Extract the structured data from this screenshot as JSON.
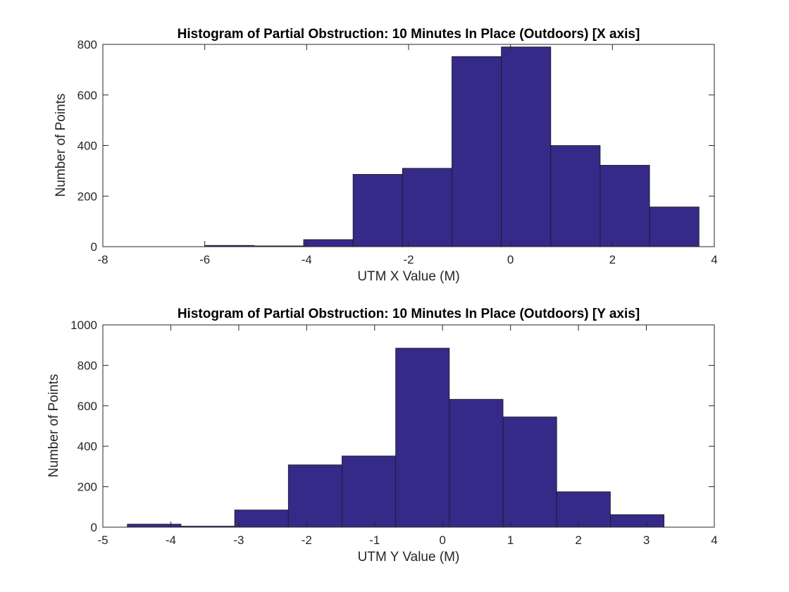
{
  "colors": {
    "bar": "#352A87"
  },
  "chart_data": [
    {
      "type": "bar",
      "title": "Histogram of Partial Obstruction: 10 Minutes In Place (Outdoors) [X axis]",
      "xlabel": "UTM X Value (M)",
      "ylabel": "Number of Points",
      "xlim": [
        -8,
        4
      ],
      "ylim": [
        0,
        800
      ],
      "xticks": [
        -8,
        -6,
        -4,
        -2,
        0,
        2,
        4
      ],
      "yticks": [
        0,
        200,
        400,
        600,
        800
      ],
      "bin_edges": [
        -6.0,
        -5.03,
        -4.06,
        -3.09,
        -2.12,
        -1.15,
        -0.18,
        0.79,
        1.76,
        2.73,
        3.7
      ],
      "values": [
        5,
        3,
        28,
        286,
        310,
        752,
        790,
        400,
        322,
        157
      ]
    },
    {
      "type": "bar",
      "title": "Histogram of Partial Obstruction: 10 Minutes In Place (Outdoors) [Y axis]",
      "xlabel": "UTM Y Value (M)",
      "ylabel": "Number of Points",
      "xlim": [
        -5,
        4
      ],
      "ylim": [
        0,
        1000
      ],
      "xticks": [
        -5,
        -4,
        -3,
        -2,
        -1,
        0,
        1,
        2,
        3,
        4
      ],
      "yticks": [
        0,
        200,
        400,
        600,
        800,
        1000
      ],
      "bin_edges": [
        -4.64,
        -3.85,
        -3.06,
        -2.27,
        -1.48,
        -0.69,
        0.1,
        0.89,
        1.68,
        2.47,
        3.26
      ],
      "values": [
        15,
        5,
        85,
        308,
        352,
        885,
        632,
        545,
        175,
        62
      ]
    }
  ]
}
